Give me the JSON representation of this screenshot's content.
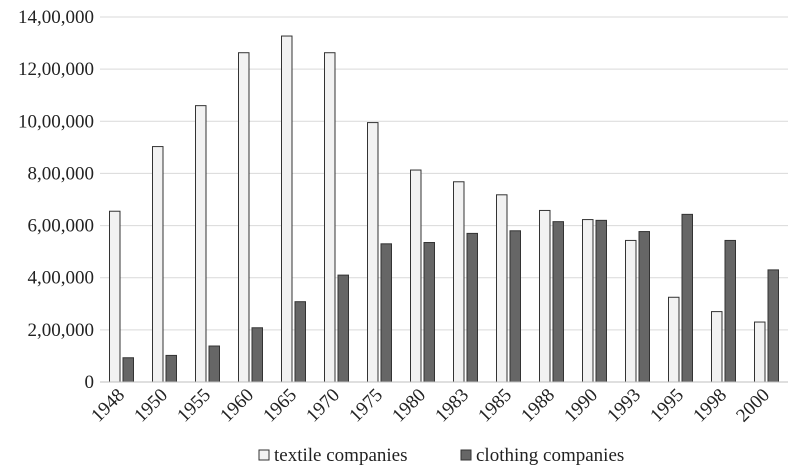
{
  "chart_data": {
    "type": "bar",
    "title": "",
    "xlabel": "",
    "ylabel": "",
    "ylim": [
      0,
      1400000
    ],
    "y_ticks": [
      0,
      200000,
      400000,
      600000,
      800000,
      1000000,
      1200000,
      1400000
    ],
    "y_tick_labels": [
      "0",
      "2,00,000",
      "4,00,000",
      "6,00,000",
      "8,00,000",
      "10,00,000",
      "12,00,000",
      "14,00,000"
    ],
    "grid": true,
    "legend_position": "bottom",
    "categories": [
      "1948",
      "1950",
      "1955",
      "1960",
      "1965",
      "1970",
      "1975",
      "1980",
      "1983",
      "1985",
      "1988",
      "1990",
      "1993",
      "1995",
      "1998",
      "2000"
    ],
    "series": [
      {
        "name": "textile companies",
        "color": "#f2f2f2",
        "values": [
          655000,
          903000,
          1060000,
          1263000,
          1327000,
          1263000,
          995000,
          813000,
          768000,
          718000,
          658000,
          623000,
          543000,
          325000,
          270000,
          230000
        ]
      },
      {
        "name": "clothing companies",
        "color": "#666666",
        "values": [
          93000,
          102000,
          138000,
          208000,
          308000,
          410000,
          530000,
          535000,
          570000,
          580000,
          615000,
          620000,
          577000,
          643000,
          543000,
          430000
        ]
      }
    ]
  }
}
